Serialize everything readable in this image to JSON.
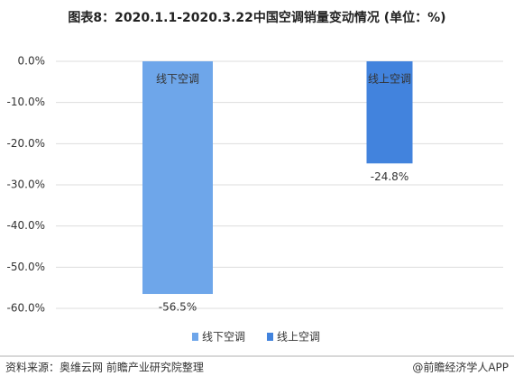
{
  "chart_data": {
    "type": "bar",
    "title": "图表8：2020.1.1-2020.3.22中国空调销量变动情况 (单位：%)",
    "series": [
      {
        "name": "线下空调",
        "color": "#6ea6ea",
        "values": [
          -56.5
        ],
        "value_labels": [
          "-56.5%"
        ]
      },
      {
        "name": "线上空调",
        "color": "#4283dd",
        "values": [
          -24.8
        ],
        "value_labels": [
          "-24.8%"
        ]
      }
    ],
    "ylim": [
      -60,
      0
    ],
    "yticks": [
      {
        "value": 0,
        "label": "0.0%"
      },
      {
        "value": -10,
        "label": "-10.0%"
      },
      {
        "value": -20,
        "label": "-20.0%"
      },
      {
        "value": -30,
        "label": "-30.0%"
      },
      {
        "value": -40,
        "label": "-40.0%"
      },
      {
        "value": -50,
        "label": "-50.0%"
      },
      {
        "value": -60,
        "label": "-60.0%"
      }
    ],
    "grid": true,
    "legend": "bottom",
    "source": "资料来源：奥维云网 前瞻产业研究院整理",
    "credit": "@前瞻经济学人APP"
  }
}
